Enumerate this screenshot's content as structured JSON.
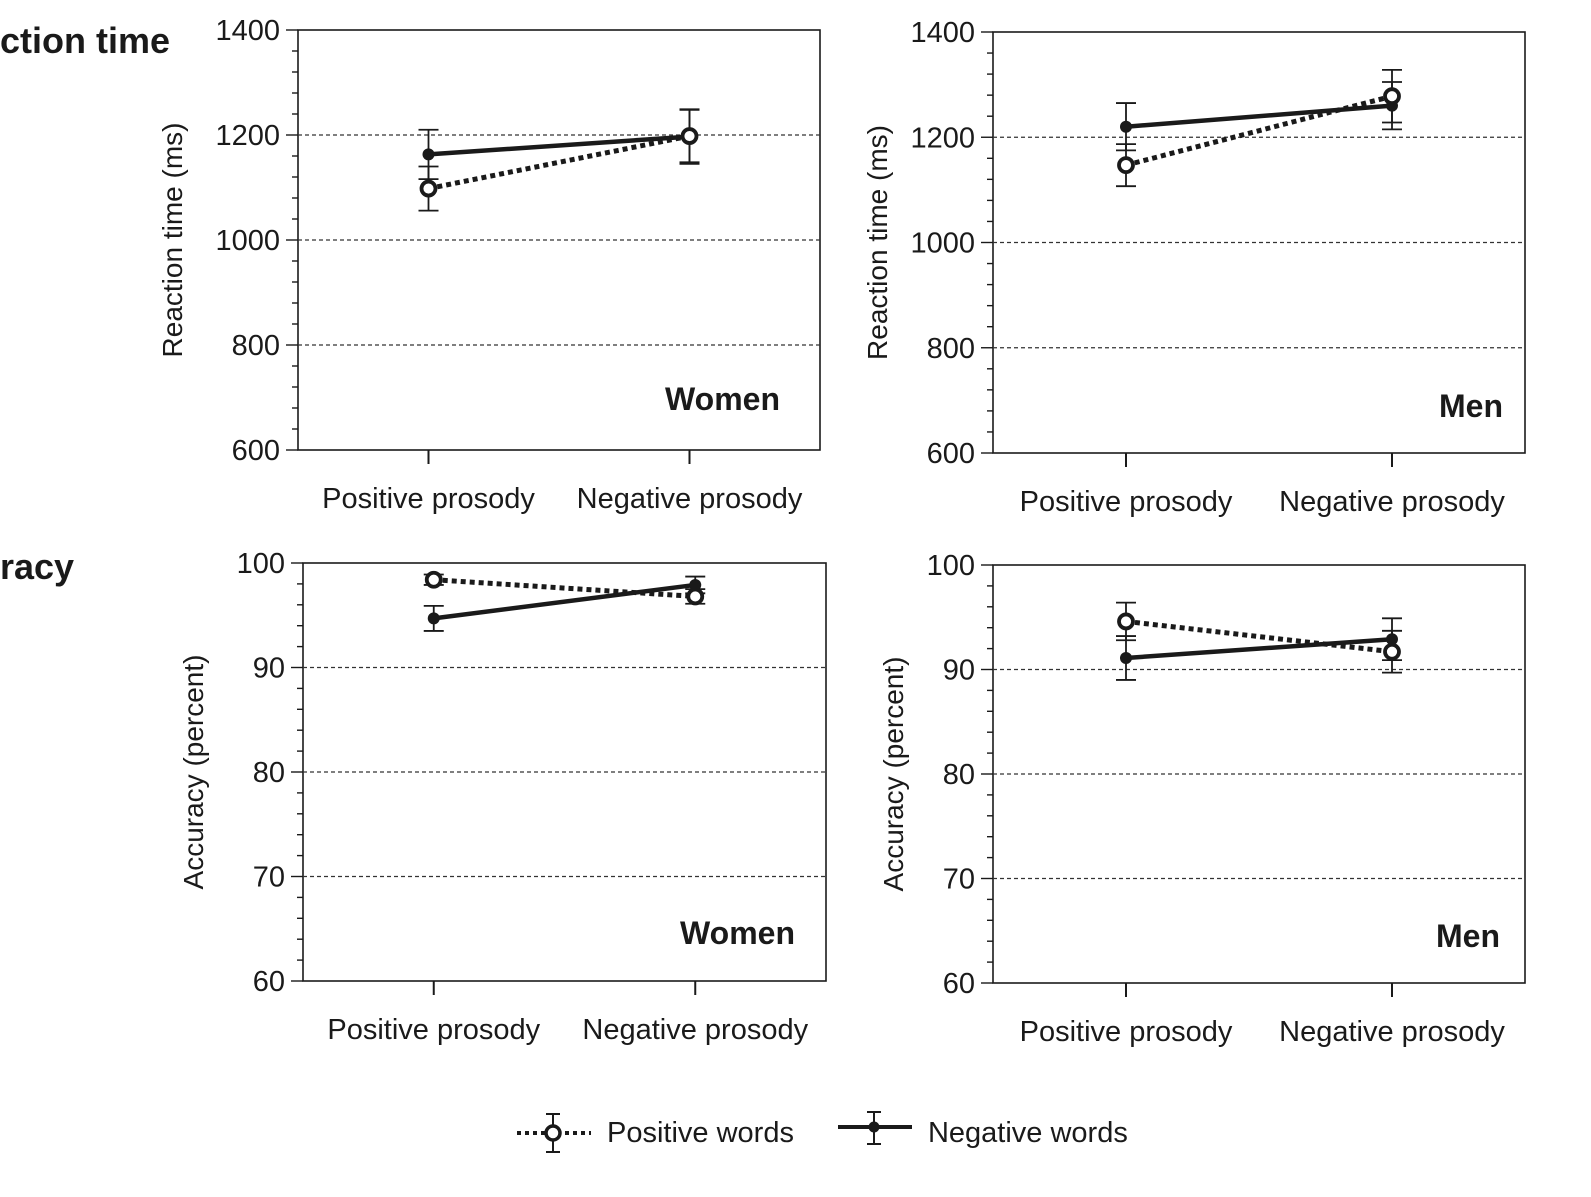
{
  "row_labels": [
    "ction time",
    "racy"
  ],
  "legend": [
    {
      "label": "Positive words",
      "style": "dotted",
      "marker": "open-circle"
    },
    {
      "label": "Negative words",
      "style": "solid",
      "marker": "filled-circle"
    }
  ],
  "colors": {
    "line": "#1a1a1a",
    "grid": "#333333",
    "background": "#ffffff"
  },
  "chart_data": [
    {
      "type": "line",
      "title": "Women",
      "ylabel": "Reaction time (ms)",
      "ylim": [
        600,
        1400
      ],
      "yticks": [
        600,
        800,
        1000,
        1200,
        1400
      ],
      "categories": [
        "Positive prosody",
        "Negative prosody"
      ],
      "grid": "dashed horizontal at 800, 1000, 1200",
      "series": [
        {
          "name": "Positive words",
          "values": [
            1098,
            1198
          ],
          "error": [
            42,
            50
          ]
        },
        {
          "name": "Negative words",
          "values": [
            1163,
            1197
          ],
          "error": [
            47,
            52
          ]
        }
      ]
    },
    {
      "type": "line",
      "title": "Men",
      "ylabel": "Reaction time (ms)",
      "ylim": [
        600,
        1400
      ],
      "yticks": [
        600,
        800,
        1000,
        1200,
        1400
      ],
      "categories": [
        "Positive prosody",
        "Negative prosody"
      ],
      "grid": "dashed horizontal at 800, 1000, 1200",
      "series": [
        {
          "name": "Positive words",
          "values": [
            1147,
            1278
          ],
          "error": [
            40,
            50
          ]
        },
        {
          "name": "Negative words",
          "values": [
            1220,
            1260
          ],
          "error": [
            45,
            45
          ]
        }
      ]
    },
    {
      "type": "line",
      "title": "Women",
      "ylabel": "Accuracy (percent)",
      "ylim": [
        60,
        100
      ],
      "yticks": [
        60,
        70,
        80,
        90,
        100
      ],
      "categories": [
        "Positive prosody",
        "Negative prosody"
      ],
      "grid": "dashed horizontal at 70, 80, 90",
      "series": [
        {
          "name": "Positive words",
          "values": [
            98.4,
            96.8
          ],
          "error": [
            0.5,
            0.7
          ]
        },
        {
          "name": "Negative words",
          "values": [
            94.7,
            97.9
          ],
          "error": [
            1.2,
            0.8
          ]
        }
      ]
    },
    {
      "type": "line",
      "title": "Men",
      "ylabel": "Accuracy (percent)",
      "ylim": [
        60,
        100
      ],
      "yticks": [
        60,
        70,
        80,
        90,
        100
      ],
      "categories": [
        "Positive prosody",
        "Negative prosody"
      ],
      "grid": "dashed horizontal at 70, 80, 90",
      "series": [
        {
          "name": "Positive words",
          "values": [
            94.6,
            91.7
          ],
          "error": [
            1.8,
            2.0
          ]
        },
        {
          "name": "Negative words",
          "values": [
            91.1,
            92.9
          ],
          "error": [
            2.1,
            2.0
          ]
        }
      ]
    }
  ]
}
